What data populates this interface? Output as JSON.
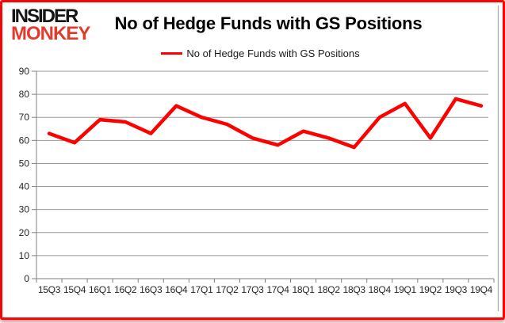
{
  "brand": {
    "line1": "INSIDER",
    "line2": "MONKEY",
    "line1_color": "#161616",
    "line2_color": "#e23b2e"
  },
  "header": {
    "title": "No of Hedge Funds with GS Positions"
  },
  "legend": {
    "label": "No of Hedge Funds with GS Positions",
    "line_color": "#fe0000"
  },
  "chart_data": {
    "type": "line",
    "title": "No of Hedge Funds with GS Positions",
    "categories": [
      "15Q3",
      "15Q4",
      "16Q1",
      "16Q2",
      "16Q3",
      "16Q4",
      "17Q1",
      "17Q2",
      "17Q3",
      "17Q4",
      "18Q1",
      "18Q2",
      "18Q3",
      "18Q4",
      "19Q1",
      "19Q2",
      "19Q3",
      "19Q4"
    ],
    "series": [
      {
        "name": "No of Hedge Funds with GS Positions",
        "color": "#fe0000",
        "values": [
          63,
          59,
          69,
          68,
          63,
          75,
          70,
          67,
          61,
          58,
          64,
          61,
          57,
          70,
          76,
          61,
          78,
          75
        ]
      }
    ],
    "xlabel": "",
    "ylabel": "",
    "ylim": [
      0,
      90
    ],
    "ytick_step": 10,
    "grid": "horizontal",
    "legend_position": "top-center"
  },
  "colors": {
    "page_border": "#fa0505",
    "gridline": "#9a9a9a",
    "axis": "#808080",
    "tick_text": "#262626",
    "chart_frame_edge": "#a8a8a8",
    "background": "#ffffff"
  }
}
